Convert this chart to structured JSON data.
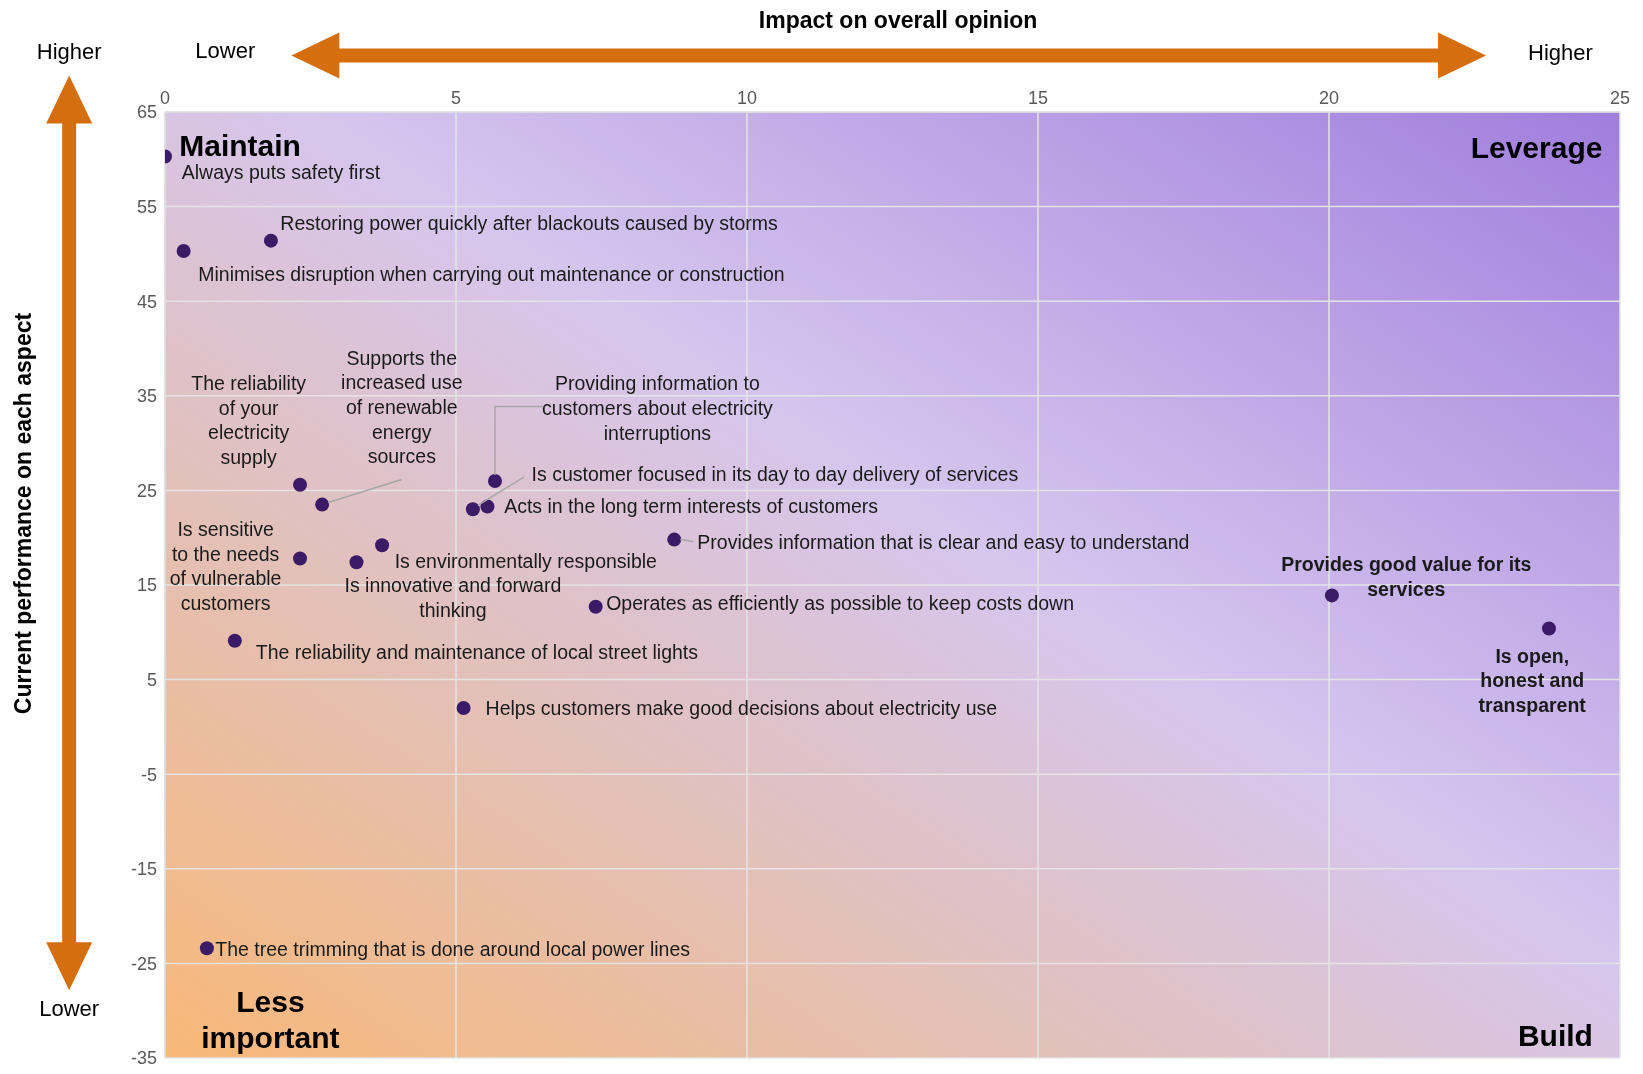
{
  "chart_data": {
    "type": "scatter",
    "xlabel": "Impact on overall opinion",
    "ylabel": "Current performance on each aspect",
    "xlim": [
      0,
      25
    ],
    "xticks": [
      0,
      5,
      10,
      15,
      20,
      25
    ],
    "ylim": [
      -35,
      65
    ],
    "yticks": [
      -35,
      -25,
      -15,
      -5,
      5,
      15,
      25,
      35,
      45,
      55,
      65
    ],
    "grid": true,
    "marker": "circle",
    "series": [
      {
        "color": "#3b1a66",
        "x": [
          0,
          1.82,
          0.32,
          2.32,
          2.7,
          5.67,
          5.29,
          5.54,
          8.75,
          2.32,
          3.73,
          3.29,
          7.4,
          20.05,
          23.78,
          1.2,
          5.13,
          0.72
        ],
        "values": [
          60.3,
          51.4,
          50.3,
          25.6,
          23.5,
          26.0,
          23.0,
          23.3,
          19.8,
          17.8,
          19.2,
          17.4,
          12.7,
          13.9,
          10.4,
          9.1,
          2.0,
          -23.4
        ]
      }
    ],
    "annotations": [
      {
        "text": "Always puts safety first",
        "x": 0,
        "y": 60.3
      },
      {
        "text": "Restoring power quickly after blackouts caused by storms",
        "x": 1.82,
        "y": 51.4
      },
      {
        "text": "Minimises disruption when carrying out maintenance or construction",
        "x": 0.32,
        "y": 50.3
      },
      {
        "text": "The reliability of your electricity supply",
        "x": 2.32,
        "y": 25.6
      },
      {
        "text": "Supports the increased use of renewable energy sources",
        "x": 2.7,
        "y": 23.5
      },
      {
        "text": "Providing information to customers about electricity interruptions",
        "x": 5.67,
        "y": 26.0
      },
      {
        "text": "Is customer focused in its day to day delivery of services",
        "x": 5.29,
        "y": 23.0
      },
      {
        "text": "Acts in the long term interests of customers",
        "x": 5.54,
        "y": 23.3
      },
      {
        "text": "Provides information that is clear and easy to understand",
        "x": 8.75,
        "y": 19.8
      },
      {
        "text": "Is sensitive to the needs of vulnerable customers",
        "x": 2.32,
        "y": 17.8
      },
      {
        "text": "Is environmentally responsible",
        "x": 3.73,
        "y": 19.2
      },
      {
        "text": "Is innovative and forward thinking",
        "x": 3.29,
        "y": 17.4
      },
      {
        "text": "Operates as efficiently as possible to keep costs down",
        "x": 7.4,
        "y": 12.7
      },
      {
        "text": "Provides good value for its services",
        "x": 20.05,
        "y": 13.9
      },
      {
        "text": "Is open, honest and transparent",
        "x": 23.78,
        "y": 10.4
      },
      {
        "text": "The reliability and maintenance of local street lights",
        "x": 1.2,
        "y": 9.1
      },
      {
        "text": "Helps customers make good decisions about electricity use",
        "x": 5.13,
        "y": 2.0
      },
      {
        "text": "The tree trimming that is done around local power lines",
        "x": 0.72,
        "y": -23.4
      },
      "Maintain",
      "Leverage",
      "Less important",
      "Build",
      "Higher",
      "Lower",
      "Lower",
      "Higher"
    ]
  }
}
